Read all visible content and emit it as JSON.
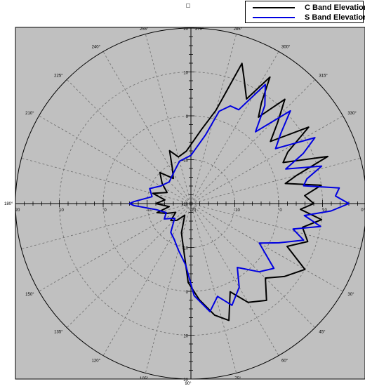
{
  "chart_data": {
    "type": "polar-line",
    "title": "",
    "radial_axis": {
      "range": [
        -20,
        20
      ],
      "ticks": [
        20,
        10,
        0,
        -10,
        -20,
        -10,
        0,
        10,
        20
      ],
      "tick_labels": [
        "20",
        "10",
        "0",
        "-10",
        "-20",
        "-10",
        "0",
        "10",
        "20"
      ],
      "vertical_tick_labels": [
        "20",
        "10",
        "0",
        "-10",
        "-20",
        "-10",
        "0",
        "10",
        "20"
      ],
      "horizontal_tick_labels": [
        "20",
        "10",
        "0",
        "-10",
        "-20",
        "-10",
        "0",
        "10",
        "20"
      ]
    },
    "angular_axis": {
      "tick_labels": [
        "0°",
        "15°",
        "30°",
        "45°",
        "60°",
        "75°",
        "90°",
        "105°",
        "120°",
        "135°",
        "150°",
        "165°",
        "180°",
        "195°",
        "210°",
        "225°",
        "240°",
        "255°",
        "270°",
        "285°",
        "300°",
        "315°",
        "330°",
        "345°"
      ],
      "angles_deg": [
        0,
        15,
        30,
        45,
        60,
        75,
        90,
        105,
        120,
        135,
        150,
        165,
        180,
        195,
        210,
        225,
        240,
        255,
        270,
        285,
        300,
        315,
        330,
        345
      ],
      "zero_direction": "right",
      "direction": "clockwise"
    },
    "grid": true,
    "legend_position": "top-right",
    "series": [
      {
        "name": "C Band Elevation",
        "color": "#000000",
        "points": [
          [
            0,
            8
          ],
          [
            -4,
            6
          ],
          [
            -8,
            10
          ],
          [
            -12,
            2
          ],
          [
            -15,
            5
          ],
          [
            -19,
            13
          ],
          [
            -24,
            3
          ],
          [
            -28,
            5
          ],
          [
            -33,
            12
          ],
          [
            -38,
            3
          ],
          [
            -43,
            7
          ],
          [
            -48,
            12
          ],
          [
            -52,
            5
          ],
          [
            -55,
            8
          ],
          [
            -58,
            14
          ],
          [
            -62,
            7
          ],
          [
            -67,
            11
          ],
          [
            -70,
            14
          ],
          [
            -75,
            2
          ],
          [
            -82,
            -3
          ],
          [
            -95,
            -8
          ],
          [
            -105,
            -9
          ],
          [
            -112,
            -7
          ],
          [
            -118,
            -11
          ],
          [
            -125,
            -13
          ],
          [
            -135,
            -10
          ],
          [
            -145,
            -12
          ],
          [
            -155,
            -14
          ],
          [
            -165,
            -11
          ],
          [
            -172,
            -14
          ],
          [
            -180,
            -12
          ],
          [
            172,
            -15
          ],
          [
            165,
            -12
          ],
          [
            158,
            -14
          ],
          [
            150,
            -16
          ],
          [
            140,
            -14
          ],
          [
            130,
            -15
          ],
          [
            118,
            -17
          ],
          [
            108,
            -13
          ],
          [
            100,
            -10
          ],
          [
            92,
            -2
          ],
          [
            85,
            2
          ],
          [
            78,
            6
          ],
          [
            72,
            8
          ],
          [
            66,
            2
          ],
          [
            60,
            6
          ],
          [
            52,
            8
          ],
          [
            45,
            4
          ],
          [
            38,
            7
          ],
          [
            30,
            10
          ],
          [
            24,
            4
          ],
          [
            18,
            8
          ],
          [
            12,
            6
          ],
          [
            7,
            10
          ],
          [
            3,
            5
          ],
          [
            0,
            8
          ]
        ]
      },
      {
        "name": "S Band Elevation",
        "color": "#0000e0",
        "points": [
          [
            0,
            16
          ],
          [
            -3,
            13
          ],
          [
            -6,
            14
          ],
          [
            -9,
            6
          ],
          [
            -12,
            7
          ],
          [
            -16,
            11
          ],
          [
            -20,
            3
          ],
          [
            -24,
            8
          ],
          [
            -28,
            12
          ],
          [
            -33,
            3
          ],
          [
            -38,
            6
          ],
          [
            -43,
            11
          ],
          [
            -48,
            2
          ],
          [
            -53,
            8
          ],
          [
            -58,
            12
          ],
          [
            -63,
            4
          ],
          [
            -68,
            4
          ],
          [
            -73,
            2
          ],
          [
            -78,
            -4
          ],
          [
            -90,
            -9
          ],
          [
            -105,
            -10
          ],
          [
            -120,
            -12
          ],
          [
            -135,
            -13
          ],
          [
            -150,
            -12
          ],
          [
            -160,
            -10
          ],
          [
            -170,
            -11
          ],
          [
            -178,
            -7
          ],
          [
            -180,
            -6
          ],
          [
            178,
            -7
          ],
          [
            170,
            -12
          ],
          [
            160,
            -14
          ],
          [
            150,
            -13
          ],
          [
            138,
            -15
          ],
          [
            125,
            -12
          ],
          [
            115,
            -11
          ],
          [
            105,
            -9
          ],
          [
            95,
            -6
          ],
          [
            88,
            1
          ],
          [
            80,
            5
          ],
          [
            74,
            2
          ],
          [
            68,
            5
          ],
          [
            60,
            2
          ],
          [
            54,
            -2
          ],
          [
            45,
            2
          ],
          [
            38,
            4
          ],
          [
            30,
            -2
          ],
          [
            24,
            2
          ],
          [
            18,
            7
          ],
          [
            14,
            4
          ],
          [
            10,
            10
          ],
          [
            6,
            6
          ],
          [
            3,
            12
          ],
          [
            0,
            16
          ]
        ]
      }
    ]
  },
  "legend": {
    "items": [
      {
        "label": "C Band Elevation",
        "color": "#000000"
      },
      {
        "label": "S Band Elevation",
        "color": "#0000e0"
      }
    ]
  },
  "colors": {
    "plot_background": "#c0c0c0",
    "outside_background": "#ffffff",
    "grid": "#6d6d6d",
    "axis": "#000000"
  }
}
